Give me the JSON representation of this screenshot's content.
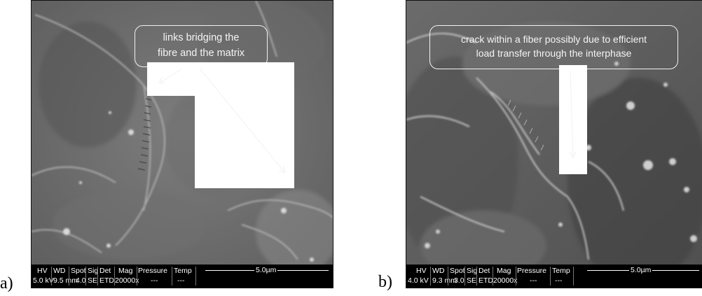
{
  "panels": [
    {
      "label": "a)",
      "callout": [
        "links bridging the",
        "fibre and the matrix"
      ],
      "databar": {
        "headers": [
          "HV",
          "WD",
          "Spot",
          "Sig",
          "Det",
          "Mag",
          "Pressure",
          "Temp"
        ],
        "values": [
          "5.0 kV",
          "9.5 mm",
          "4.0",
          "SE",
          "ETD",
          "20000x",
          "---",
          "---"
        ],
        "scale": "5.0µm"
      }
    },
    {
      "label": "b)",
      "callout": [
        "crack  within a fiber possibly due to efficient",
        "load transfer through the interphase"
      ],
      "databar": {
        "headers": [
          "HV",
          "WD",
          "Spot",
          "Sig",
          "Det",
          "Mag",
          "Pressure",
          "Temp"
        ],
        "values": [
          "4.0 kV",
          "9.3 mm",
          "3.0",
          "SE",
          "ETD",
          "20000x",
          "---",
          "---"
        ],
        "scale": "5.0µm"
      }
    }
  ]
}
